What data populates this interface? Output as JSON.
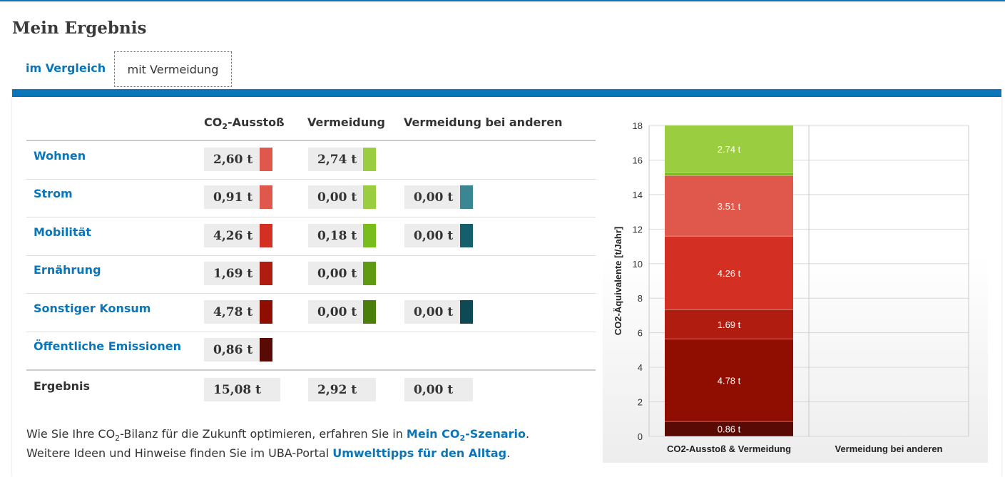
{
  "page_title": "Mein Ergebnis",
  "tabs": [
    {
      "label": "im Vergleich",
      "active": false
    },
    {
      "label": "mit Vermeidung",
      "active": true
    }
  ],
  "table": {
    "headers": {
      "emission_prefix": "CO",
      "emission_sub": "2",
      "emission_suffix": "-Ausstoß",
      "avoid": "Vermeidung",
      "others": "Vermeidung bei anderen"
    },
    "rows": [
      {
        "label": "Wohnen",
        "emission": "2,60 t",
        "avoid": "2,74 t",
        "others": "",
        "emission_color": "#e0574c",
        "avoid_color": "#9acd40",
        "others_color": ""
      },
      {
        "label": "Strom",
        "emission": "0,91 t",
        "avoid": "0,00 t",
        "others": "0,00 t",
        "emission_color": "#e0574c",
        "avoid_color": "#9acd40",
        "others_color": "#3a8693"
      },
      {
        "label": "Mobilität",
        "emission": "4,26 t",
        "avoid": "0,18 t",
        "others": "0,00 t",
        "emission_color": "#d32f22",
        "avoid_color": "#78bd1b",
        "others_color": "#155e6c"
      },
      {
        "label": "Ernährung",
        "emission": "1,69 t",
        "avoid": "0,00 t",
        "others": "",
        "emission_color": "#b01c10",
        "avoid_color": "#5f9a12",
        "others_color": ""
      },
      {
        "label": "Sonstiger Konsum",
        "emission": "4,78 t",
        "avoid": "0,00 t",
        "others": "0,00 t",
        "emission_color": "#900d02",
        "avoid_color": "#4a7f0c",
        "others_color": "#0d4a56"
      },
      {
        "label": "Öffentliche Emissionen",
        "emission": "0,86 t",
        "avoid": "",
        "others": "",
        "emission_color": "#5a0a05",
        "avoid_color": "",
        "others_color": ""
      }
    ],
    "total": {
      "label": "Ergebnis",
      "emission": "15,08 t",
      "avoid": "2,92 t",
      "others": "0,00 t"
    }
  },
  "footer": {
    "line1_a": "Wie Sie Ihre CO",
    "line1_sub": "2",
    "line1_b": "-Bilanz für die Zukunft optimieren, erfahren Sie in ",
    "link1_a": "Mein CO",
    "link1_sub": "2",
    "link1_b": "-Szenario",
    "line1_end": ".",
    "line2": "Weitere Ideen und Hinweise finden Sie im UBA-Portal ",
    "link2": "Umwelttipps für den Alltag",
    "line2_end": "."
  },
  "chart_data": {
    "type": "bar",
    "stacked": true,
    "categories": [
      "CO2-Ausstoß & Vermeidung",
      "Vermeidung bei anderen"
    ],
    "ylabel": "CO2-Äquivalente [t/Jahr]",
    "ylim": [
      0,
      18
    ],
    "yticks": [
      0,
      2,
      4,
      6,
      8,
      10,
      12,
      14,
      16,
      18
    ],
    "grid": true,
    "segments": [
      {
        "category": 0,
        "value": 0.86,
        "label": "0.86 t",
        "color": "#5a0a05"
      },
      {
        "category": 0,
        "value": 4.78,
        "label": "4.78 t",
        "color": "#900d02"
      },
      {
        "category": 0,
        "value": 1.69,
        "label": "1.69 t",
        "color": "#b01c10"
      },
      {
        "category": 0,
        "value": 4.26,
        "label": "4.26 t",
        "color": "#d32f22"
      },
      {
        "category": 0,
        "value": 3.51,
        "label": "3.51 t",
        "color": "#e0574c"
      },
      {
        "category": 0,
        "value": 0.18,
        "label": "",
        "color": "#78bd1b"
      },
      {
        "category": 0,
        "value": 2.74,
        "label": "2.74 t",
        "color": "#9acd40"
      }
    ]
  }
}
